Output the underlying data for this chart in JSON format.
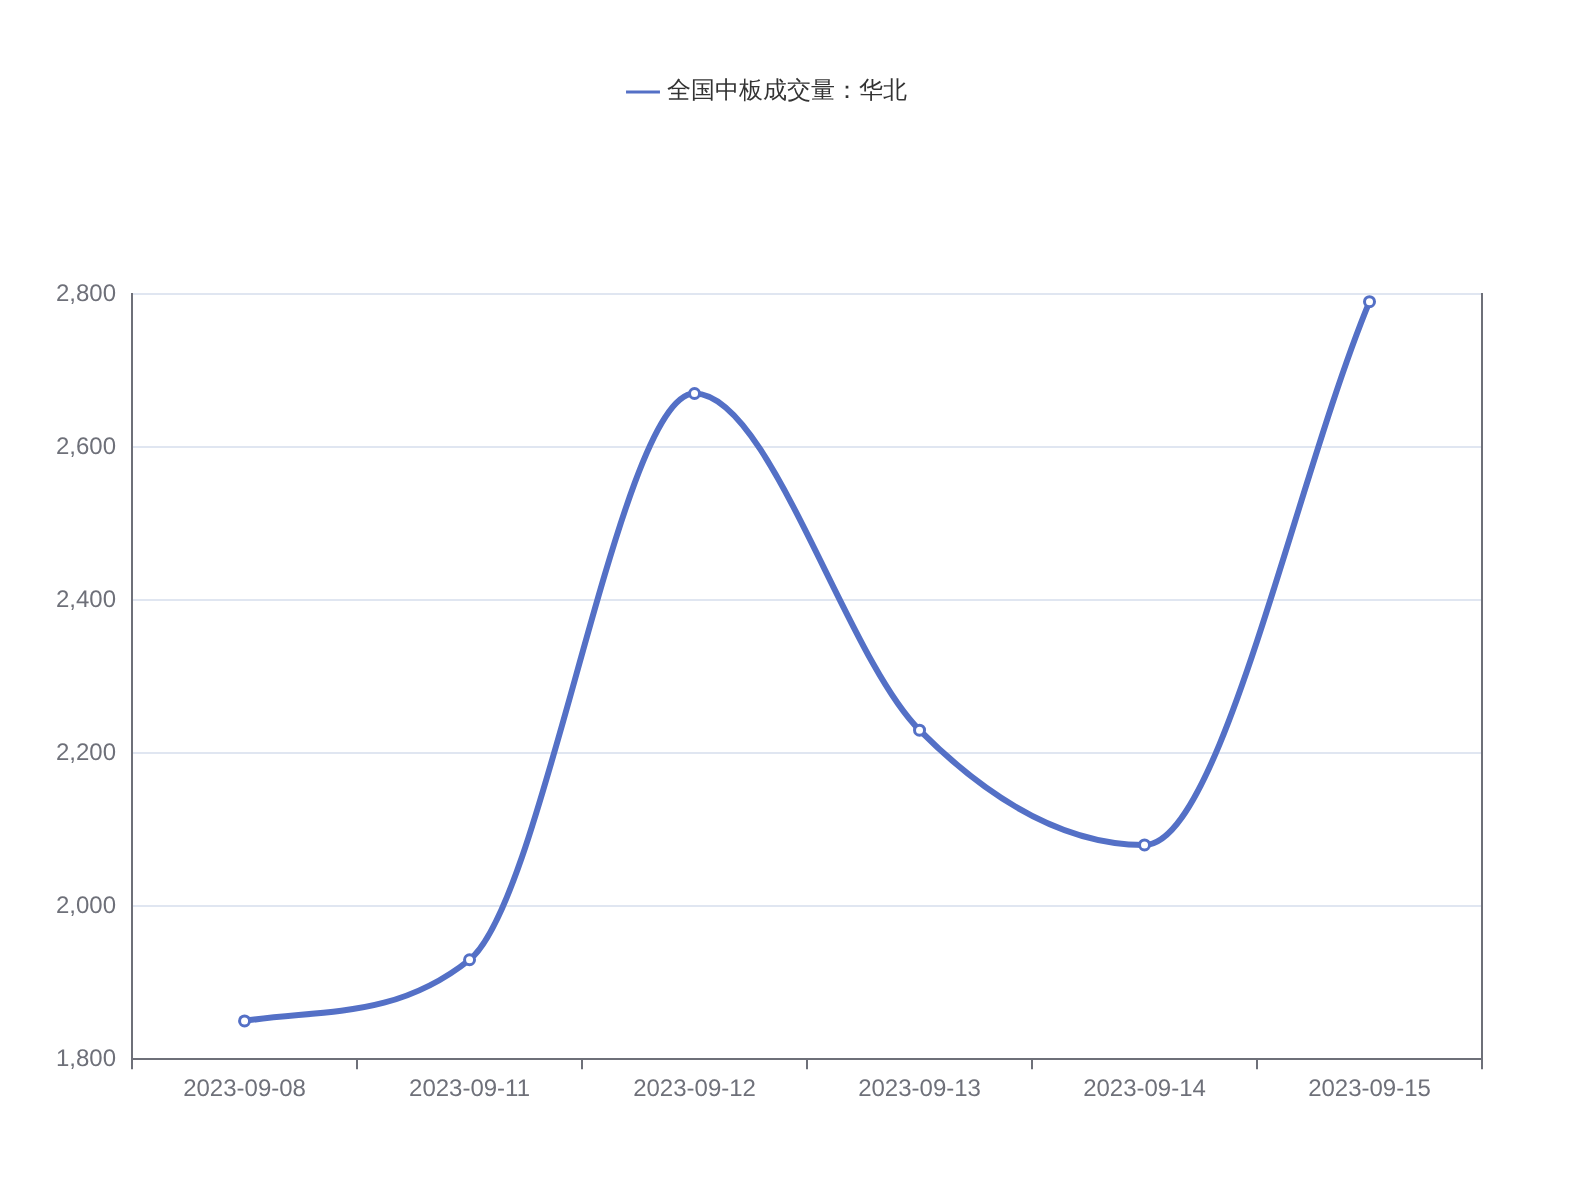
{
  "chart_data": {
    "type": "line",
    "categories": [
      "2023-09-08",
      "2023-09-11",
      "2023-09-12",
      "2023-09-13",
      "2023-09-14",
      "2023-09-15"
    ],
    "series": [
      {
        "name": "全国中板成交量：华北",
        "color": "#5470c6",
        "values": [
          1850,
          1930,
          2670,
          2230,
          2080,
          2790
        ]
      }
    ],
    "ylim": [
      1800,
      2800
    ],
    "yticks": [
      {
        "value": 1800,
        "label": "1,800"
      },
      {
        "value": 2000,
        "label": "2,000"
      },
      {
        "value": 2200,
        "label": "2,200"
      },
      {
        "value": 2400,
        "label": "2,400"
      },
      {
        "value": 2600,
        "label": "2,600"
      },
      {
        "value": 2800,
        "label": "2,800"
      }
    ],
    "grid": "y",
    "legend": "top",
    "marker": "circle",
    "line_style": "solid"
  }
}
